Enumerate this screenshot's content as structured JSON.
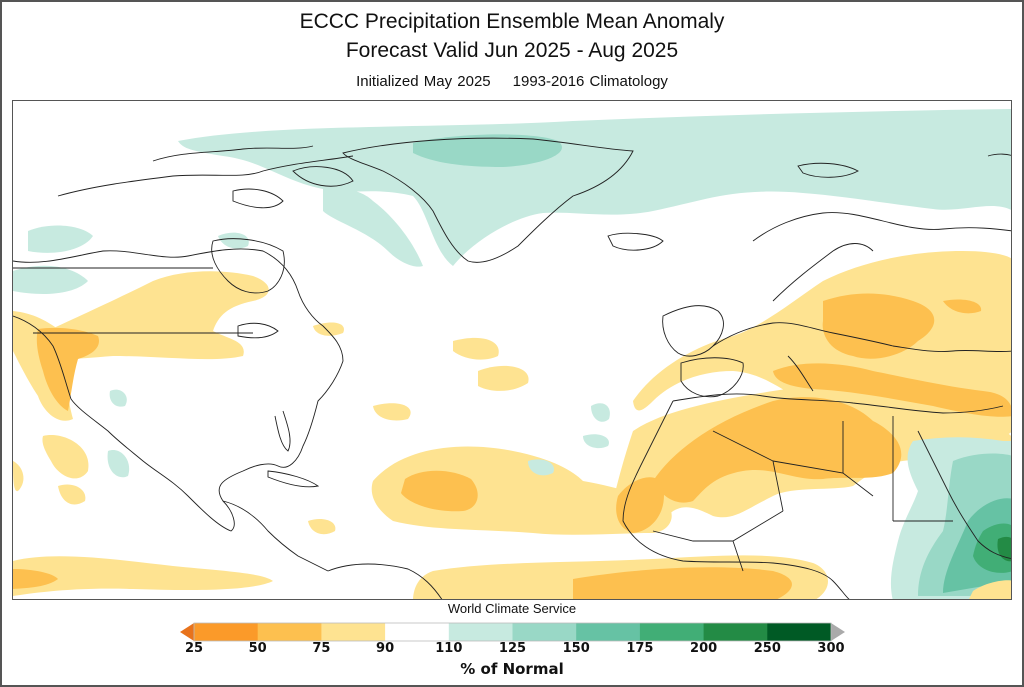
{
  "header": {
    "title": "ECCC Precipitation Ensemble Mean Anomaly",
    "subtitle": "Forecast Valid Jun 2025 - Aug 2025",
    "initialized": "Initialized May 2025",
    "climatology": "1993-2016 Climatology"
  },
  "credit": "World Climate Service",
  "colorbar": {
    "unit_label": "% of Normal",
    "ticks": [
      "25",
      "50",
      "75",
      "90",
      "110",
      "125",
      "150",
      "175",
      "200",
      "250",
      "300"
    ],
    "under_color": "#e8731c",
    "over_color": "#aaaaaa",
    "bins": [
      {
        "range": "25-50",
        "color": "#fb9a29"
      },
      {
        "range": "50-75",
        "color": "#fdc04f"
      },
      {
        "range": "75-90",
        "color": "#fee391"
      },
      {
        "range": "90-110",
        "color": "#ffffff"
      },
      {
        "range": "110-125",
        "color": "#c7eae0"
      },
      {
        "range": "125-150",
        "color": "#99d8c6"
      },
      {
        "range": "150-175",
        "color": "#66c2a4"
      },
      {
        "range": "175-200",
        "color": "#41ae76"
      },
      {
        "range": "200-250",
        "color": "#238b45"
      },
      {
        "range": "250-300",
        "color": "#005a25"
      }
    ]
  },
  "map": {
    "region": "North America, North Atlantic, Europe, North Africa",
    "features": [
      {
        "area": "Greenland / Arctic",
        "category": "110-150"
      },
      {
        "area": "Europe / Eastern Europe",
        "category": "50-90"
      },
      {
        "area": "Mediterranean / North Africa",
        "category": "50-90"
      },
      {
        "area": "Tropical Atlantic",
        "category": "50-90"
      },
      {
        "area": "US West Coast",
        "category": "50-90"
      },
      {
        "area": "Canadian Prairies",
        "category": "75-90"
      },
      {
        "area": "Horn of Africa / Ethiopia",
        "category": "110-250"
      },
      {
        "area": "Gulf of Guinea",
        "category": "50-90"
      }
    ]
  }
}
